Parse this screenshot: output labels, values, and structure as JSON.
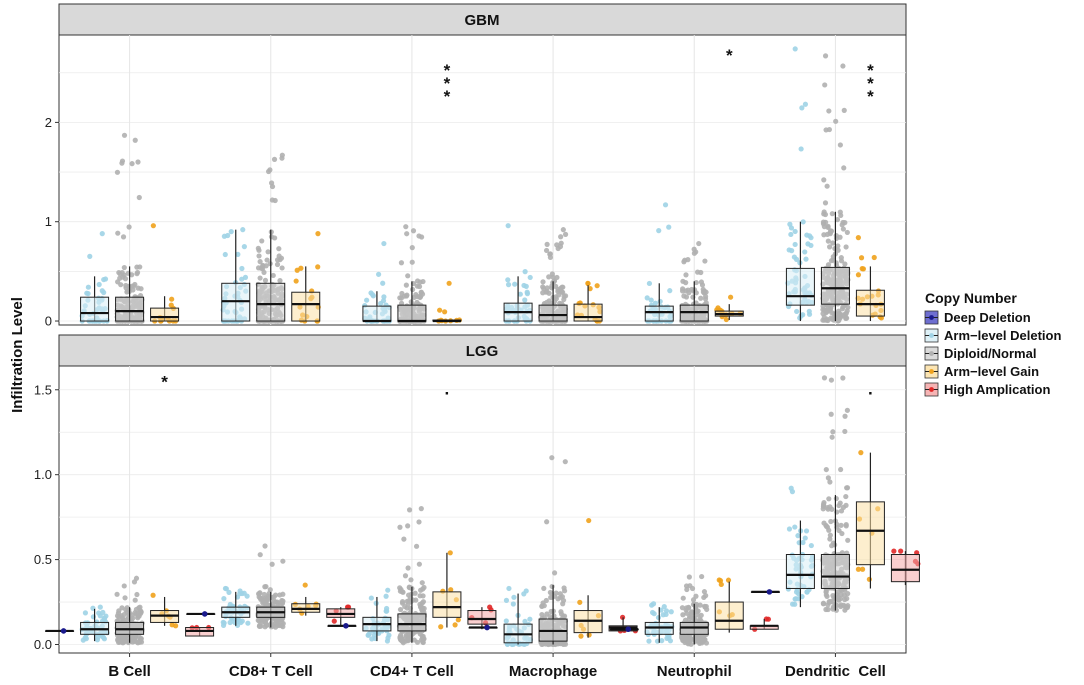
{
  "chart_data": {
    "type": "boxplot",
    "ylabel": "Infiltration Level",
    "categories": [
      "B Cell",
      "CD8+ T Cell",
      "CD4+ T Cell",
      "Macrophage",
      "Neutrophil",
      "Dendritic  Cell"
    ],
    "legend": {
      "title": "Copy Number",
      "position": "right",
      "entries": [
        {
          "name": "Deep Deletion",
          "fill": "#5555c8",
          "point": "#1a1a8c"
        },
        {
          "name": "Arm−level Deletion",
          "fill": "#d8eef6",
          "point": "#9fd3e6"
        },
        {
          "name": "Diploid/Normal",
          "fill": "#d4d4d4",
          "point": "#b0b0b0"
        },
        {
          "name": "Arm−level Gain",
          "fill": "#fbe0a6",
          "point": "#f0a21c"
        },
        {
          "name": "High Amplication",
          "fill": "#f4a7a7",
          "point": "#e02828"
        }
      ]
    },
    "panels": [
      {
        "title": "GBM",
        "ylim": [
          -0.04,
          2.88
        ],
        "yticks": [
          0,
          1,
          2
        ],
        "groups": [
          {
            "cat": 0,
            "series": 1,
            "q1": 0.0,
            "median": 0.08,
            "q3": 0.24,
            "whisker_low": 0.0,
            "whisker_high": 0.45,
            "npts": 45,
            "pmax": 0.88
          },
          {
            "cat": 0,
            "series": 2,
            "q1": 0.0,
            "median": 0.1,
            "q3": 0.24,
            "whisker_low": 0.0,
            "whisker_high": 0.55,
            "npts": 160,
            "pmax": 1.87
          },
          {
            "cat": 0,
            "series": 3,
            "q1": 0.0,
            "median": 0.04,
            "q3": 0.13,
            "whisker_low": 0.0,
            "whisker_high": 0.25,
            "npts": 14,
            "pmax": 0.96
          },
          {
            "cat": 1,
            "series": 1,
            "q1": 0.0,
            "median": 0.2,
            "q3": 0.38,
            "whisker_low": 0.0,
            "whisker_high": 0.92,
            "npts": 45,
            "pmax": 0.9
          },
          {
            "cat": 1,
            "series": 2,
            "q1": 0.0,
            "median": 0.17,
            "q3": 0.38,
            "whisker_low": 0.0,
            "whisker_high": 0.92,
            "npts": 160,
            "pmax": 1.67
          },
          {
            "cat": 1,
            "series": 3,
            "q1": 0.0,
            "median": 0.17,
            "q3": 0.29,
            "whisker_low": 0.0,
            "whisker_high": 0.55,
            "npts": 16,
            "pmax": 0.88
          },
          {
            "cat": 2,
            "series": 1,
            "q1": 0.0,
            "median": 0.0,
            "q3": 0.15,
            "whisker_low": 0.0,
            "whisker_high": 0.3,
            "npts": 40,
            "pmax": 0.78
          },
          {
            "cat": 2,
            "series": 2,
            "q1": 0.0,
            "median": 0.0,
            "q3": 0.16,
            "whisker_low": 0.0,
            "whisker_high": 0.4,
            "npts": 150,
            "pmax": 0.95
          },
          {
            "cat": 2,
            "series": 3,
            "q1": 0.0,
            "median": 0.0,
            "q3": 0.01,
            "whisker_low": 0.0,
            "whisker_high": 0.01,
            "npts": 10,
            "pmax": 0.38
          },
          {
            "cat": 3,
            "series": 1,
            "q1": 0.0,
            "median": 0.09,
            "q3": 0.18,
            "whisker_low": 0.0,
            "whisker_high": 0.45,
            "npts": 45,
            "pmax": 0.96
          },
          {
            "cat": 3,
            "series": 2,
            "q1": 0.0,
            "median": 0.06,
            "q3": 0.16,
            "whisker_low": 0.0,
            "whisker_high": 0.4,
            "npts": 160,
            "pmax": 0.92
          },
          {
            "cat": 3,
            "series": 3,
            "q1": 0.0,
            "median": 0.04,
            "q3": 0.17,
            "whisker_low": 0.0,
            "whisker_high": 0.36,
            "npts": 16,
            "pmax": 0.38
          },
          {
            "cat": 4,
            "series": 1,
            "q1": 0.0,
            "median": 0.09,
            "q3": 0.15,
            "whisker_low": 0.0,
            "whisker_high": 0.38,
            "npts": 40,
            "pmax": 1.17
          },
          {
            "cat": 4,
            "series": 2,
            "q1": 0.0,
            "median": 0.09,
            "q3": 0.16,
            "whisker_low": 0.0,
            "whisker_high": 0.4,
            "npts": 150,
            "pmax": 0.78
          },
          {
            "cat": 4,
            "series": 3,
            "q1": 0.05,
            "median": 0.07,
            "q3": 0.1,
            "whisker_low": 0.01,
            "whisker_high": 0.17,
            "npts": 12,
            "pmax": 0.24
          },
          {
            "cat": 5,
            "series": 1,
            "q1": 0.16,
            "median": 0.25,
            "q3": 0.53,
            "whisker_low": 0.0,
            "whisker_high": 1.0,
            "npts": 55,
            "pmax": 2.74
          },
          {
            "cat": 5,
            "series": 2,
            "q1": 0.17,
            "median": 0.33,
            "q3": 0.54,
            "whisker_low": 0.0,
            "whisker_high": 1.1,
            "npts": 220,
            "pmax": 2.67
          },
          {
            "cat": 5,
            "series": 3,
            "q1": 0.05,
            "median": 0.17,
            "q3": 0.31,
            "whisker_low": 0.0,
            "whisker_high": 0.55,
            "npts": 20,
            "pmax": 0.84
          }
        ],
        "annotations": [
          {
            "cat": 2,
            "series": 3,
            "y": 2.55,
            "text": "*",
            "stack": 3
          },
          {
            "cat": 4,
            "series": 3,
            "y": 2.7,
            "text": "*",
            "stack": 1
          },
          {
            "cat": 5,
            "series": 3,
            "y": 2.55,
            "text": "*",
            "stack": 3
          }
        ]
      },
      {
        "title": "LGG",
        "ylim": [
          -0.05,
          1.64
        ],
        "yticks": [
          0.0,
          0.5,
          1.0,
          1.5
        ],
        "ytick_labels": [
          "0.0",
          "0.5",
          "1.0",
          "1.5"
        ],
        "groups": [
          {
            "cat": 0,
            "series": 0,
            "q1": 0.08,
            "median": 0.08,
            "q3": 0.08,
            "whisker_low": 0.08,
            "whisker_high": 0.08,
            "npts": 1,
            "pmax": 0.08
          },
          {
            "cat": 0,
            "series": 1,
            "q1": 0.06,
            "median": 0.09,
            "q3": 0.13,
            "whisker_low": 0.02,
            "whisker_high": 0.21,
            "npts": 45,
            "pmax": 0.22
          },
          {
            "cat": 0,
            "series": 2,
            "q1": 0.06,
            "median": 0.09,
            "q3": 0.13,
            "whisker_low": 0.01,
            "whisker_high": 0.22,
            "npts": 200,
            "pmax": 0.39
          },
          {
            "cat": 0,
            "series": 3,
            "q1": 0.13,
            "median": 0.17,
            "q3": 0.2,
            "whisker_low": 0.11,
            "whisker_high": 0.28,
            "npts": 7,
            "pmax": 0.29
          },
          {
            "cat": 0,
            "series": 4,
            "q1": 0.05,
            "median": 0.08,
            "q3": 0.1,
            "whisker_low": 0.05,
            "whisker_high": 0.1,
            "npts": 3,
            "pmax": 0.1
          },
          {
            "cat": 1,
            "series": 0,
            "q1": 0.18,
            "median": 0.18,
            "q3": 0.18,
            "whisker_low": 0.18,
            "whisker_high": 0.18,
            "npts": 1,
            "pmax": 0.18
          },
          {
            "cat": 1,
            "series": 1,
            "q1": 0.16,
            "median": 0.19,
            "q3": 0.22,
            "whisker_low": 0.11,
            "whisker_high": 0.31,
            "npts": 45,
            "pmax": 0.33
          },
          {
            "cat": 1,
            "series": 2,
            "q1": 0.16,
            "median": 0.19,
            "q3": 0.22,
            "whisker_low": 0.1,
            "whisker_high": 0.31,
            "npts": 200,
            "pmax": 0.58
          },
          {
            "cat": 1,
            "series": 3,
            "q1": 0.19,
            "median": 0.21,
            "q3": 0.24,
            "whisker_low": 0.17,
            "whisker_high": 0.28,
            "npts": 7,
            "pmax": 0.35
          },
          {
            "cat": 1,
            "series": 4,
            "q1": 0.16,
            "median": 0.18,
            "q3": 0.21,
            "whisker_low": 0.11,
            "whisker_high": 0.22,
            "npts": 4,
            "pmax": 0.22
          },
          {
            "cat": 2,
            "series": 0,
            "q1": 0.11,
            "median": 0.11,
            "q3": 0.11,
            "whisker_low": 0.11,
            "whisker_high": 0.11,
            "npts": 1,
            "pmax": 0.11
          },
          {
            "cat": 2,
            "series": 1,
            "q1": 0.08,
            "median": 0.12,
            "q3": 0.16,
            "whisker_low": 0.02,
            "whisker_high": 0.28,
            "npts": 45,
            "pmax": 0.32
          },
          {
            "cat": 2,
            "series": 2,
            "q1": 0.08,
            "median": 0.12,
            "q3": 0.18,
            "whisker_low": 0.01,
            "whisker_high": 0.34,
            "npts": 200,
            "pmax": 0.8
          },
          {
            "cat": 2,
            "series": 3,
            "q1": 0.16,
            "median": 0.22,
            "q3": 0.31,
            "whisker_low": 0.1,
            "whisker_high": 0.54,
            "npts": 7,
            "pmax": 0.54
          },
          {
            "cat": 2,
            "series": 4,
            "q1": 0.12,
            "median": 0.15,
            "q3": 0.2,
            "whisker_low": 0.09,
            "whisker_high": 0.22,
            "npts": 4,
            "pmax": 0.22
          },
          {
            "cat": 3,
            "series": 0,
            "q1": 0.1,
            "median": 0.1,
            "q3": 0.1,
            "whisker_low": 0.1,
            "whisker_high": 0.1,
            "npts": 1,
            "pmax": 0.1
          },
          {
            "cat": 3,
            "series": 1,
            "q1": 0.01,
            "median": 0.06,
            "q3": 0.12,
            "whisker_low": 0.0,
            "whisker_high": 0.3,
            "npts": 45,
            "pmax": 0.33
          },
          {
            "cat": 3,
            "series": 2,
            "q1": 0.02,
            "median": 0.08,
            "q3": 0.15,
            "whisker_low": 0.0,
            "whisker_high": 0.35,
            "npts": 200,
            "pmax": 1.1
          },
          {
            "cat": 3,
            "series": 3,
            "q1": 0.07,
            "median": 0.14,
            "q3": 0.2,
            "whisker_low": 0.04,
            "whisker_high": 0.29,
            "npts": 7,
            "pmax": 0.73
          },
          {
            "cat": 3,
            "series": 4,
            "q1": 0.08,
            "median": 0.1,
            "q3": 0.11,
            "whisker_low": 0.08,
            "whisker_high": 0.16,
            "npts": 4,
            "pmax": 0.16
          },
          {
            "cat": 4,
            "series": 0,
            "q1": 0.09,
            "median": 0.09,
            "q3": 0.09,
            "whisker_low": 0.09,
            "whisker_high": 0.09,
            "npts": 1,
            "pmax": 0.09
          },
          {
            "cat": 4,
            "series": 1,
            "q1": 0.06,
            "median": 0.1,
            "q3": 0.13,
            "whisker_low": 0.01,
            "whisker_high": 0.22,
            "npts": 45,
            "pmax": 0.24
          },
          {
            "cat": 4,
            "series": 2,
            "q1": 0.06,
            "median": 0.1,
            "q3": 0.13,
            "whisker_low": 0.0,
            "whisker_high": 0.24,
            "npts": 200,
            "pmax": 0.4
          },
          {
            "cat": 4,
            "series": 3,
            "q1": 0.09,
            "median": 0.14,
            "q3": 0.25,
            "whisker_low": 0.07,
            "whisker_high": 0.37,
            "npts": 7,
            "pmax": 0.38
          },
          {
            "cat": 4,
            "series": 4,
            "q1": 0.09,
            "median": 0.11,
            "q3": 0.11,
            "whisker_low": 0.09,
            "whisker_high": 0.15,
            "npts": 3,
            "pmax": 0.15
          },
          {
            "cat": 5,
            "series": 0,
            "q1": 0.31,
            "median": 0.31,
            "q3": 0.31,
            "whisker_low": 0.31,
            "whisker_high": 0.31,
            "npts": 1,
            "pmax": 0.31
          },
          {
            "cat": 5,
            "series": 1,
            "q1": 0.33,
            "median": 0.41,
            "q3": 0.53,
            "whisker_low": 0.22,
            "whisker_high": 0.73,
            "npts": 50,
            "pmax": 0.92
          },
          {
            "cat": 5,
            "series": 2,
            "q1": 0.33,
            "median": 0.4,
            "q3": 0.53,
            "whisker_low": 0.2,
            "whisker_high": 0.88,
            "npts": 220,
            "pmax": 1.57
          },
          {
            "cat": 5,
            "series": 3,
            "q1": 0.47,
            "median": 0.67,
            "q3": 0.84,
            "whisker_low": 0.33,
            "whisker_high": 1.13,
            "npts": 7,
            "pmax": 1.13
          },
          {
            "cat": 5,
            "series": 4,
            "q1": 0.37,
            "median": 0.44,
            "q3": 0.53,
            "whisker_low": 0.35,
            "whisker_high": 0.55,
            "npts": 5,
            "pmax": 0.55
          }
        ],
        "annotations": [
          {
            "cat": 0,
            "series": 3,
            "y": 1.56,
            "text": "*",
            "stack": 1
          },
          {
            "cat": 2,
            "series": 3,
            "y": 1.52,
            "text": ".",
            "stack": 1
          },
          {
            "cat": 5,
            "series": 3,
            "y": 1.52,
            "text": ".",
            "stack": 1
          }
        ]
      }
    ]
  }
}
